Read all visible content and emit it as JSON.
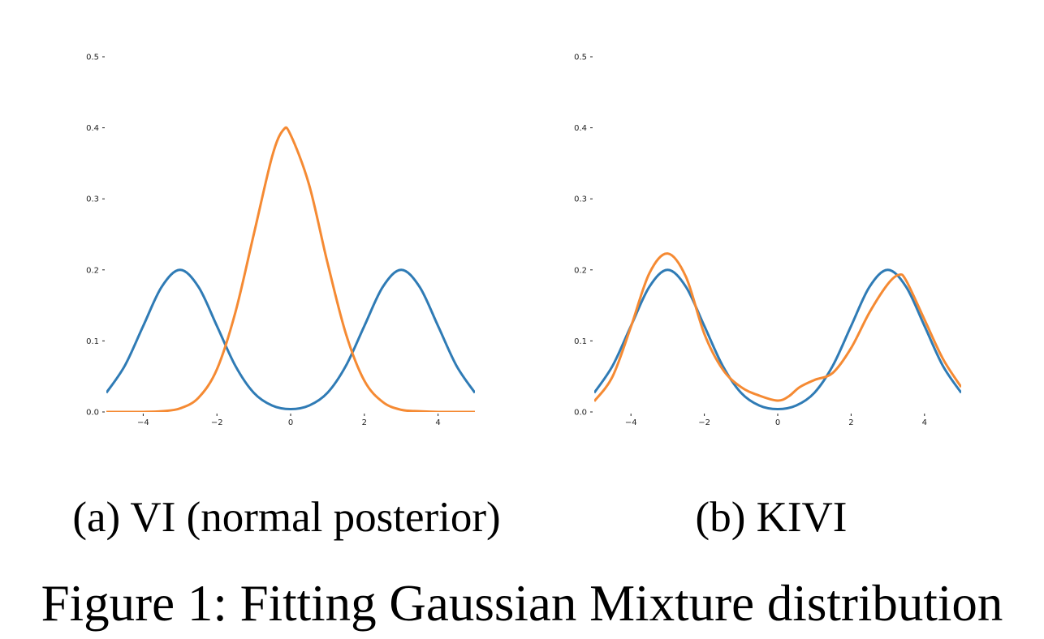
{
  "figure_caption": "Figure 1: Fitting Gaussian Mixture distribution",
  "colors": {
    "target": "#2f7bb5",
    "fit": "#f58a33",
    "axis": "#222222",
    "text": "#000000"
  },
  "chart_data": [
    {
      "type": "line",
      "caption": "(a) VI (normal posterior)",
      "xlim": [
        -5,
        5
      ],
      "ylim": [
        0,
        0.5
      ],
      "xticks": [
        {
          "value": -4,
          "label": "−4"
        },
        {
          "value": -2,
          "label": "−2"
        },
        {
          "value": 0,
          "label": "0"
        },
        {
          "value": 2,
          "label": "2"
        },
        {
          "value": 4,
          "label": "4"
        }
      ],
      "yticks": [
        {
          "value": 0.0,
          "label": "0.0"
        },
        {
          "value": 0.1,
          "label": "0.1"
        },
        {
          "value": 0.2,
          "label": "0.2"
        },
        {
          "value": 0.3,
          "label": "0.3"
        },
        {
          "value": 0.4,
          "label": "0.4"
        },
        {
          "value": 0.5,
          "label": "0.5"
        }
      ],
      "grid": false,
      "series": [
        {
          "color": "#2f7bb5",
          "x": [
            -5,
            -4.5,
            -4,
            -3.5,
            -3,
            -2.5,
            -2,
            -1.5,
            -1,
            -0.5,
            0,
            0.5,
            1,
            1.5,
            2,
            2.5,
            3,
            3.5,
            4,
            4.5,
            5
          ],
          "y": [
            0.027,
            0.065,
            0.121,
            0.176,
            0.2,
            0.176,
            0.121,
            0.065,
            0.027,
            0.009,
            0.004,
            0.009,
            0.027,
            0.065,
            0.121,
            0.176,
            0.2,
            0.176,
            0.121,
            0.065,
            0.027
          ]
        },
        {
          "color": "#f58a33",
          "x": [
            -5,
            -4.5,
            -4,
            -3.5,
            -3,
            -2.5,
            -2,
            -1.5,
            -1,
            -0.5,
            -0.2,
            0,
            0.5,
            1,
            1.5,
            2,
            2.5,
            3,
            3.5,
            4,
            4.5,
            5
          ],
          "y": [
            0.0,
            0.0,
            0.0,
            0.001,
            0.005,
            0.02,
            0.06,
            0.14,
            0.25,
            0.36,
            0.397,
            0.39,
            0.32,
            0.21,
            0.11,
            0.044,
            0.014,
            0.003,
            0.001,
            0.0,
            0.0,
            0.0
          ]
        }
      ]
    },
    {
      "type": "line",
      "caption": "(b) KIVI",
      "xlim": [
        -5,
        5
      ],
      "ylim": [
        0,
        0.5
      ],
      "xticks": [
        {
          "value": -4,
          "label": "−4"
        },
        {
          "value": -2,
          "label": "−2"
        },
        {
          "value": 0,
          "label": "0"
        },
        {
          "value": 2,
          "label": "2"
        },
        {
          "value": 4,
          "label": "4"
        }
      ],
      "yticks": [
        {
          "value": 0.0,
          "label": "0.0"
        },
        {
          "value": 0.1,
          "label": "0.1"
        },
        {
          "value": 0.2,
          "label": "0.2"
        },
        {
          "value": 0.3,
          "label": "0.3"
        },
        {
          "value": 0.4,
          "label": "0.4"
        },
        {
          "value": 0.5,
          "label": "0.5"
        }
      ],
      "grid": false,
      "series": [
        {
          "color": "#2f7bb5",
          "x": [
            -5,
            -4.5,
            -4,
            -3.5,
            -3,
            -2.5,
            -2,
            -1.5,
            -1,
            -0.5,
            0,
            0.5,
            1,
            1.5,
            2,
            2.5,
            3,
            3.5,
            4,
            4.5,
            5
          ],
          "y": [
            0.027,
            0.065,
            0.121,
            0.176,
            0.2,
            0.176,
            0.121,
            0.065,
            0.027,
            0.009,
            0.004,
            0.009,
            0.027,
            0.065,
            0.121,
            0.176,
            0.2,
            0.176,
            0.121,
            0.065,
            0.027
          ]
        },
        {
          "color": "#f58a33",
          "x": [
            -5,
            -4.5,
            -4,
            -3.5,
            -3,
            -2.5,
            -2,
            -1.5,
            -1,
            -0.5,
            0,
            0.3,
            0.6,
            1,
            1.5,
            2,
            2.5,
            3,
            3.3,
            3.5,
            4,
            4.5,
            5
          ],
          "y": [
            0.015,
            0.05,
            0.12,
            0.195,
            0.223,
            0.19,
            0.11,
            0.06,
            0.035,
            0.023,
            0.016,
            0.022,
            0.035,
            0.045,
            0.055,
            0.09,
            0.14,
            0.18,
            0.193,
            0.185,
            0.13,
            0.075,
            0.035
          ]
        }
      ]
    }
  ]
}
